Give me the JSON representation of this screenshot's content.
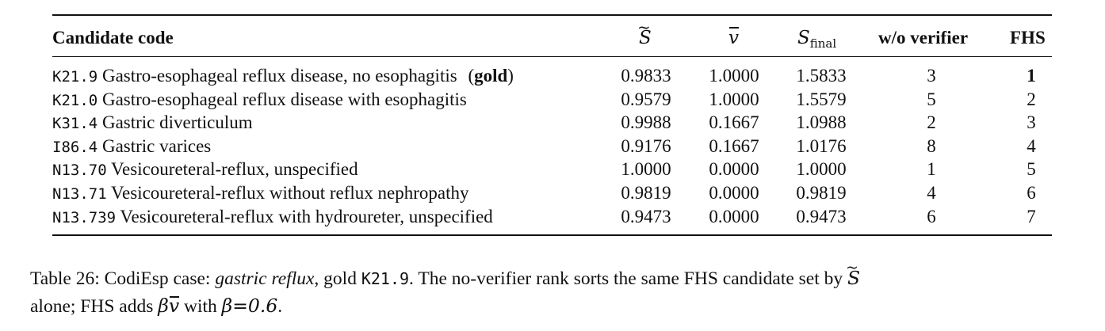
{
  "table": {
    "headers": {
      "candidate": "Candidate code",
      "s_tilde": "S",
      "v_bar": "v",
      "s_final": "S",
      "s_final_sub": "final",
      "wo_verifier": "w/o verifier",
      "fhs": "FHS"
    },
    "rows": [
      {
        "code": "K21.9",
        "desc": "Gastro-esophageal reflux disease, no esophagitis",
        "tag_open": "(",
        "tag": "gold",
        "tag_close": ")",
        "s": "0.9833",
        "v": "1.0000",
        "sf": "1.5833",
        "wo": "3",
        "fhs": "1"
      },
      {
        "code": "K21.0",
        "desc": "Gastro-esophageal reflux disease with esophagitis",
        "s": "0.9579",
        "v": "1.0000",
        "sf": "1.5579",
        "wo": "5",
        "fhs": "2"
      },
      {
        "code": "K31.4",
        "desc": "Gastric diverticulum",
        "s": "0.9988",
        "v": "0.1667",
        "sf": "1.0988",
        "wo": "2",
        "fhs": "3"
      },
      {
        "code": "I86.4",
        "desc": "Gastric varices",
        "s": "0.9176",
        "v": "0.1667",
        "sf": "1.0176",
        "wo": "8",
        "fhs": "4"
      },
      {
        "code": "N13.70",
        "desc": "Vesicoureteral-reflux, unspecified",
        "s": "1.0000",
        "v": "0.0000",
        "sf": "1.0000",
        "wo": "1",
        "fhs": "5"
      },
      {
        "code": "N13.71",
        "desc": "Vesicoureteral-reflux without reflux nephropathy",
        "s": "0.9819",
        "v": "0.0000",
        "sf": "0.9819",
        "wo": "4",
        "fhs": "6"
      },
      {
        "code": "N13.739",
        "desc": "Vesicoureteral-reflux with hydroureter, unspecified",
        "s": "0.9473",
        "v": "0.0000",
        "sf": "0.9473",
        "wo": "6",
        "fhs": "7"
      }
    ]
  },
  "caption": {
    "label": "Table 26:",
    "text1": "CodiEsp case:",
    "case_name": "gastric reflux",
    "text2": ", gold",
    "gold_code": "K21.9",
    "text3": ". The no-verifier rank sorts the same FHS candidate set by",
    "s_symbol": "S",
    "line2_a": "alone; FHS adds",
    "beta": "β",
    "v_symbol": "v",
    "line2_b": "with",
    "beta_eq": "β=0.6",
    "line2_c": "."
  }
}
